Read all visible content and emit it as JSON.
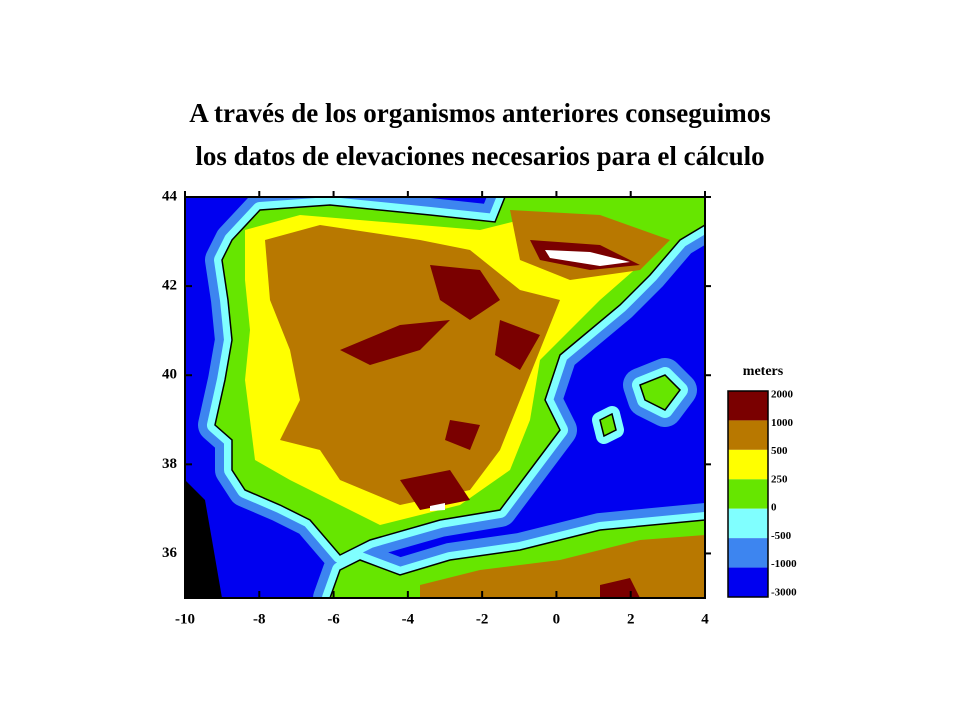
{
  "title": {
    "line1": "A través de los organismos anteriores conseguimos",
    "line2": "los datos de elevaciones necesarios para el cálculo"
  },
  "map": {
    "xlim": [
      -10,
      4
    ],
    "ylim": [
      35,
      44
    ],
    "xticks": [
      -10,
      -8,
      -6,
      -4,
      -2,
      0,
      2,
      4
    ],
    "yticks": [
      36,
      38,
      40,
      42,
      44
    ]
  },
  "legend": {
    "title": "meters",
    "labels": [
      "2000",
      "1000",
      "500",
      "250",
      "0",
      "-500",
      "-1000",
      "-3000"
    ],
    "colors": [
      "#7a0000",
      "#b87800",
      "#ffff00",
      "#66e600",
      "#80ffff",
      "#3d85f0",
      "#0000f0"
    ]
  }
}
